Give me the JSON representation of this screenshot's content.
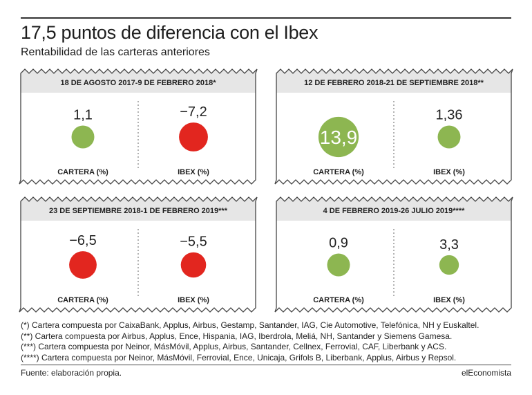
{
  "title": "17,5 puntos de diferencia con el Ibex",
  "subtitle": "Rentabilidad de las carteras anteriores",
  "colors": {
    "positive": "#8db651",
    "negative": "#e2261f",
    "header": "#e6e6e6",
    "border": "#444444"
  },
  "chart_data": [
    {
      "type": "bubble",
      "period": "18 DE AGOSTO 2017-9 DE FEBRERO 2018*",
      "values": [
        {
          "label": "CARTERA (%)",
          "value": 1.1,
          "display": "1,1"
        },
        {
          "label": "IBEX (%)",
          "value": -7.2,
          "display": "−7,2"
        }
      ]
    },
    {
      "type": "bubble",
      "period": "12 DE FEBRERO 2018-21 DE SEPTIEMBRE 2018**",
      "values": [
        {
          "label": "CARTERA (%)",
          "value": 13.9,
          "display": "13,9"
        },
        {
          "label": "IBEX (%)",
          "value": 1.36,
          "display": "1,36"
        }
      ]
    },
    {
      "type": "bubble",
      "period": "23 DE SEPTIEMBRE 2018-1 DE FEBRERO 2019***",
      "values": [
        {
          "label": "CARTERA (%)",
          "value": -6.5,
          "display": "−6,5"
        },
        {
          "label": "IBEX (%)",
          "value": -5.5,
          "display": "−5,5"
        }
      ]
    },
    {
      "type": "bubble",
      "period": "4 DE FEBRERO 2019-26 JULIO 2019****",
      "values": [
        {
          "label": "CARTERA (%)",
          "value": 0.9,
          "display": "0,9"
        },
        {
          "label": "IBEX (%)",
          "value": 3.3,
          "display": "3,3"
        }
      ]
    }
  ],
  "notes": [
    "(*) Cartera compuesta por CaixaBank, Applus, Airbus, Gestamp, Santander, IAG, Cie Automotive, Telefónica, NH y Euskaltel.",
    "(**) Cartera compuesta por Airbus, Applus, Ence, Hispania, IAG, Iberdrola, Meliá, NH, Santander y Siemens Gamesa.",
    "(***) Cartera compuesta por Neinor, MásMóvil, Applus, Airbus, Santander, Cellnex, Ferrovial, CAF, Liberbank y ACS.",
    "(****) Cartera compuesta por Neinor, MásMóvil, Ferrovial, Ence, Unicaja, Grifols B, Liberbank, Applus, Airbus y Repsol."
  ],
  "source": "Fuente: elaboración propia.",
  "brand": "elEconomista"
}
